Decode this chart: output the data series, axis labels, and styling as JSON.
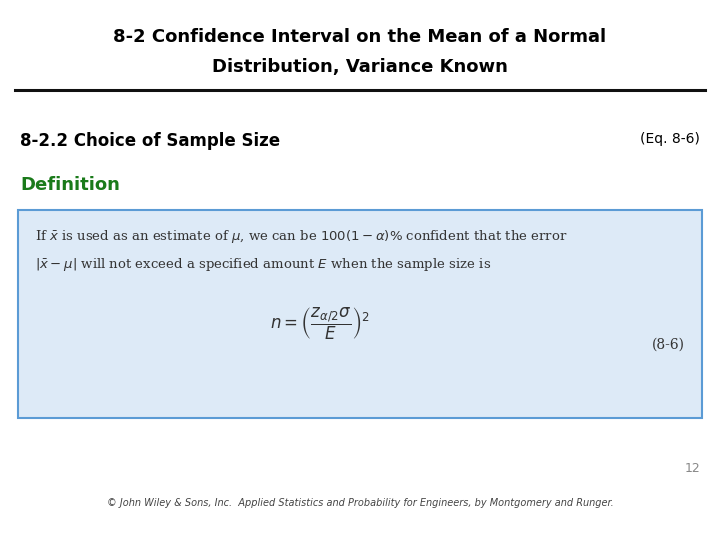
{
  "title_line1": "8-2 Confidence Interval on the Mean of a Normal",
  "title_line2": "Distribution, Variance Known",
  "section_title": "8-2.2 Choice of Sample Size",
  "eq_ref": "(Eq. 8-6)",
  "definition_label": "Definition",
  "box_text_line1": "If $\\bar{x}$ is used as an estimate of $\\mu$, we can be $100(1 - \\alpha)\\%$ confident that the error",
  "box_text_line2": "$|\\bar{x} - \\mu|$ will not exceed a specified amount $E$ when the sample size is",
  "formula": "$n = \\left(\\dfrac{z_{\\alpha/2}\\sigma}{E}\\right)^{2}$",
  "eq_label": "(8-6)",
  "page_number": "12",
  "footer": "© John Wiley & Sons, Inc.  Applied Statistics and Probability for Engineers, by Montgomery and Runger.",
  "title_color": "#000000",
  "section_color": "#000000",
  "definition_color": "#1a7a1a",
  "box_bg_color": "#ddeaf7",
  "box_border_color": "#5b9bd5",
  "box_text_color": "#333333",
  "eq_label_color": "#333333",
  "page_color": "#888888",
  "footer_color": "#444444",
  "background_color": "#ffffff"
}
